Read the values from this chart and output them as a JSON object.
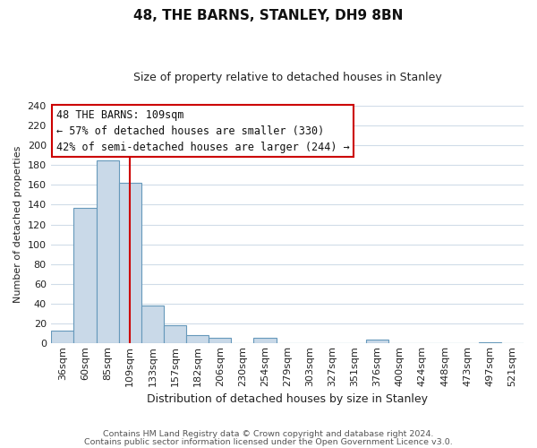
{
  "title": "48, THE BARNS, STANLEY, DH9 8BN",
  "subtitle": "Size of property relative to detached houses in Stanley",
  "xlabel": "Distribution of detached houses by size in Stanley",
  "ylabel": "Number of detached properties",
  "footnote1": "Contains HM Land Registry data © Crown copyright and database right 2024.",
  "footnote2": "Contains public sector information licensed under the Open Government Licence v3.0.",
  "bar_labels": [
    "36sqm",
    "60sqm",
    "85sqm",
    "109sqm",
    "133sqm",
    "157sqm",
    "182sqm",
    "206sqm",
    "230sqm",
    "254sqm",
    "279sqm",
    "303sqm",
    "327sqm",
    "351sqm",
    "376sqm",
    "400sqm",
    "424sqm",
    "448sqm",
    "473sqm",
    "497sqm",
    "521sqm"
  ],
  "bar_values": [
    13,
    137,
    185,
    162,
    38,
    18,
    8,
    6,
    0,
    6,
    0,
    0,
    0,
    0,
    4,
    0,
    0,
    0,
    0,
    1,
    0
  ],
  "bar_color": "#c9d9e8",
  "bar_edge_color": "#6699bb",
  "ylim": [
    0,
    240
  ],
  "yticks": [
    0,
    20,
    40,
    60,
    80,
    100,
    120,
    140,
    160,
    180,
    200,
    220,
    240
  ],
  "vline_x": 3,
  "vline_color": "#cc0000",
  "annotation_title": "48 THE BARNS: 109sqm",
  "annotation_line1": "← 57% of detached houses are smaller (330)",
  "annotation_line2": "42% of semi-detached houses are larger (244) →",
  "annotation_box_facecolor": "#ffffff",
  "annotation_box_edgecolor": "#cc0000",
  "background_color": "#ffffff",
  "plot_bg_color": "#ffffff",
  "grid_color": "#d0dce8",
  "title_fontsize": 11,
  "subtitle_fontsize": 9,
  "ylabel_fontsize": 8,
  "xlabel_fontsize": 9,
  "tick_fontsize": 8,
  "annotation_fontsize": 8.5,
  "footnote_fontsize": 6.8
}
